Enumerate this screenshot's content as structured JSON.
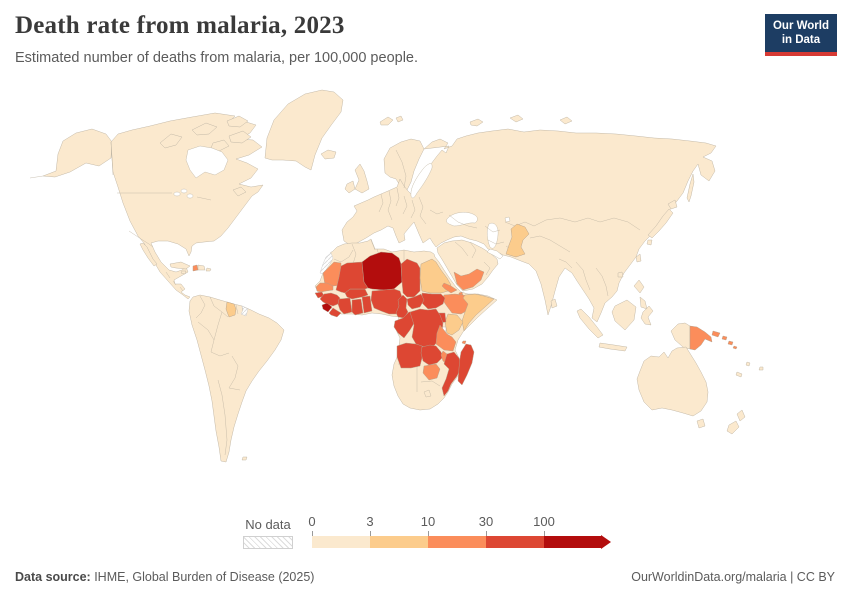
{
  "header": {
    "title": "Death rate from malaria, 2023",
    "subtitle": "Estimated number of deaths from malaria, per 100,000 people.",
    "logo_line1": "Our World",
    "logo_line2": "in Data"
  },
  "legend": {
    "no_data_label": "No data"
  },
  "footer": {
    "source_label": "Data source:",
    "source_text": " IHME, Global Burden of Disease (2025)",
    "right_text": "OurWorldinData.org/malaria | CC BY"
  },
  "colors": {
    "logo_navy": "#1d3d63",
    "logo_red": "#d73a34",
    "land_border": "#c3b9a8",
    "ocean": "#ffffff",
    "text_gray": "#5b5b5b"
  },
  "chart_data": {
    "type": "choropleth_map",
    "title": "Death rate from malaria, 2023",
    "subtitle": "Estimated number of deaths from malaria, per 100,000 people.",
    "unit": "deaths per 100,000 people",
    "year": 2023,
    "legend_position": "bottom",
    "scale": {
      "bins": [
        0,
        3,
        10,
        30,
        100
      ],
      "tick_labels": [
        "0",
        "3",
        "10",
        "30",
        "100"
      ],
      "bin_ranges": [
        "0-3",
        "3-10",
        "10-30",
        "30-100",
        "100+"
      ],
      "colors": [
        "#fbe9ce",
        "#fccc8c",
        "#fb8d5b",
        "#dd4733",
        "#b30d0d"
      ],
      "no_data_color": "#ffffff",
      "no_data_hatch_color": "#d9d9d9",
      "arrow_end": true
    },
    "default_bucket": "0-3",
    "countries": {
      "niger": {
        "name": "Niger",
        "bucket": "100+"
      },
      "sierra-leone": {
        "name": "Sierra Leone",
        "bucket": "100+"
      },
      "mali": {
        "name": "Mali",
        "bucket": "30-100"
      },
      "burkina-faso": {
        "name": "Burkina Faso",
        "bucket": "30-100"
      },
      "guinea": {
        "name": "Guinea",
        "bucket": "30-100"
      },
      "guinea-bissau": {
        "name": "Guinea-Bissau",
        "bucket": "30-100"
      },
      "liberia": {
        "name": "Liberia",
        "bucket": "30-100"
      },
      "cote-divoire": {
        "name": "Cote d'Ivoire",
        "bucket": "30-100"
      },
      "ghana": {
        "name": "Ghana",
        "bucket": "30-100"
      },
      "togo-benin": {
        "name": "Togo and Benin",
        "bucket": "30-100"
      },
      "nigeria": {
        "name": "Nigeria",
        "bucket": "30-100"
      },
      "chad": {
        "name": "Chad",
        "bucket": "30-100"
      },
      "cameroon": {
        "name": "Cameroon",
        "bucket": "30-100"
      },
      "central-african-republic": {
        "name": "Central African Republic",
        "bucket": "30-100"
      },
      "south-sudan": {
        "name": "South Sudan",
        "bucket": "30-100"
      },
      "dr-congo": {
        "name": "Democratic Republic of Congo",
        "bucket": "30-100"
      },
      "gabon-congo": {
        "name": "Gabon and Congo",
        "bucket": "30-100"
      },
      "uganda": {
        "name": "Uganda",
        "bucket": "30-100"
      },
      "rwanda-burundi": {
        "name": "Rwanda and Burundi",
        "bucket": "30-100"
      },
      "angola": {
        "name": "Angola",
        "bucket": "30-100"
      },
      "zambia": {
        "name": "Zambia",
        "bucket": "30-100"
      },
      "mozambique": {
        "name": "Mozambique",
        "bucket": "30-100"
      },
      "madagascar": {
        "name": "Madagascar",
        "bucket": "30-100"
      },
      "mauritania": {
        "name": "Mauritania",
        "bucket": "10-30"
      },
      "senegal": {
        "name": "Senegal",
        "bucket": "10-30"
      },
      "eritrea": {
        "name": "Eritrea",
        "bucket": "10-30"
      },
      "djibouti": {
        "name": "Djibouti",
        "bucket": "10-30"
      },
      "ethiopia": {
        "name": "Ethiopia",
        "bucket": "10-30"
      },
      "tanzania": {
        "name": "Tanzania",
        "bucket": "10-30"
      },
      "malawi": {
        "name": "Malawi",
        "bucket": "10-30"
      },
      "zimbabwe": {
        "name": "Zimbabwe",
        "bucket": "10-30"
      },
      "comoros": {
        "name": "Comoros",
        "bucket": "10-30"
      },
      "yemen": {
        "name": "Yemen",
        "bucket": "10-30"
      },
      "haiti": {
        "name": "Haiti",
        "bucket": "10-30"
      },
      "papua-new-guinea": {
        "name": "Papua New Guinea",
        "bucket": "10-30"
      },
      "new-britain": {
        "name": "Papua New Guinea (islands)",
        "bucket": "10-30"
      },
      "solomon-islands": {
        "name": "Solomon Islands",
        "bucket": "10-30"
      },
      "sudan": {
        "name": "Sudan",
        "bucket": "3-10"
      },
      "somalia": {
        "name": "Somalia",
        "bucket": "3-10"
      },
      "kenya": {
        "name": "Kenya",
        "bucket": "3-10"
      },
      "pakistan": {
        "name": "Pakistan",
        "bucket": "3-10"
      },
      "guyana": {
        "name": "Guyana",
        "bucket": "3-10"
      },
      "western-sahara": {
        "name": "Western Sahara",
        "bucket": "no-data"
      },
      "french-guiana": {
        "name": "French Guiana",
        "bucket": "no-data"
      }
    }
  }
}
